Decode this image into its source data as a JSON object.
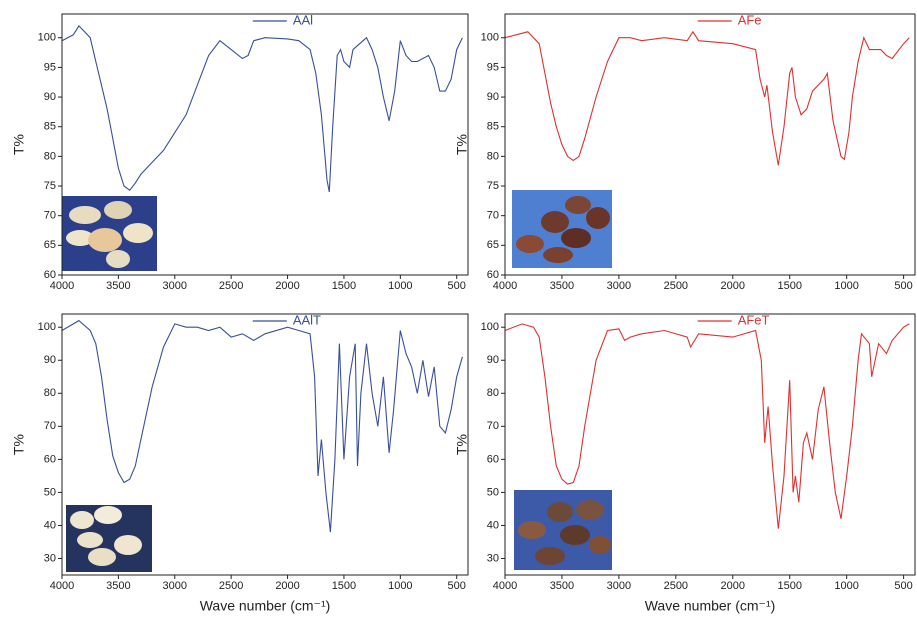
{
  "chart_data": [
    {
      "type": "line",
      "ylabel": "T%",
      "legend": "top",
      "x": [
        4000,
        3900,
        3850,
        3800,
        3750,
        3700,
        3650,
        3600,
        3550,
        3500,
        3450,
        3400,
        3350,
        3300,
        3200,
        3100,
        3000,
        2900,
        2800,
        2700,
        2600,
        2500,
        2400,
        2350,
        2300,
        2200,
        2000,
        1900,
        1800,
        1750,
        1700,
        1650,
        1630,
        1600,
        1560,
        1530,
        1500,
        1450,
        1420,
        1300,
        1250,
        1200,
        1150,
        1100,
        1050,
        1000,
        950,
        900,
        850,
        750,
        700,
        650,
        600,
        550,
        500,
        450
      ],
      "series": [
        {
          "name": "AAl",
          "color": "#3a4f9a",
          "values": [
            99.5,
            100.5,
            102,
            101,
            100,
            96,
            92,
            88,
            83,
            78,
            75,
            74.3,
            75.5,
            77,
            79,
            81,
            84,
            87,
            92,
            97,
            99.5,
            98,
            96.5,
            97,
            99.5,
            100,
            99.8,
            99.5,
            98,
            94,
            87,
            76,
            74,
            85,
            97,
            98,
            96,
            95,
            98,
            100,
            98,
            95,
            90,
            86,
            91,
            99.5,
            97,
            96,
            96,
            97,
            95,
            91,
            91,
            93,
            98,
            100
          ]
        }
      ],
      "xlim": [
        4000,
        400
      ],
      "ylim": [
        60,
        104
      ],
      "xticks": [
        4000,
        3500,
        3000,
        2500,
        2000,
        1500,
        1000,
        500
      ],
      "yticks": [
        60,
        65,
        70,
        75,
        80,
        85,
        90,
        95,
        100
      ]
    },
    {
      "type": "line",
      "ylabel": "T%",
      "legend": "top",
      "x": [
        4000,
        3800,
        3700,
        3650,
        3600,
        3550,
        3500,
        3450,
        3400,
        3350,
        3300,
        3200,
        3100,
        3000,
        2900,
        2800,
        2600,
        2400,
        2350,
        2300,
        2000,
        1800,
        1760,
        1720,
        1700,
        1650,
        1600,
        1550,
        1500,
        1480,
        1450,
        1400,
        1350,
        1300,
        1200,
        1170,
        1120,
        1050,
        1020,
        980,
        950,
        900,
        850,
        800,
        700,
        650,
        600,
        500,
        450
      ],
      "series": [
        {
          "name": "AFe",
          "color": "#e03030",
          "values": [
            100,
            101,
            99,
            94,
            89,
            85,
            82,
            80,
            79.3,
            80,
            83,
            90,
            96,
            100,
            100,
            99.5,
            100,
            99.5,
            101,
            99.5,
            99,
            98,
            93,
            90,
            92,
            84,
            78.5,
            85,
            94,
            95,
            90,
            87,
            88,
            91,
            93,
            94,
            86,
            80,
            79.5,
            84,
            90,
            96,
            100,
            98,
            98,
            97,
            96.5,
            99,
            100
          ]
        }
      ],
      "xlim": [
        4000,
        400
      ],
      "ylim": [
        60,
        104
      ],
      "xticks": [
        4000,
        3500,
        3000,
        2500,
        2000,
        1500,
        1000,
        500
      ],
      "yticks": [
        60,
        65,
        70,
        75,
        80,
        85,
        90,
        95,
        100
      ]
    },
    {
      "type": "line",
      "ylabel": "T%",
      "xlabel": "Wave number (cm⁻¹)",
      "legend": "top",
      "x": [
        4000,
        3850,
        3750,
        3700,
        3650,
        3600,
        3550,
        3500,
        3450,
        3400,
        3350,
        3300,
        3200,
        3100,
        3000,
        2900,
        2800,
        2700,
        2600,
        2500,
        2400,
        2300,
        2200,
        2000,
        1900,
        1800,
        1760,
        1730,
        1700,
        1660,
        1620,
        1580,
        1540,
        1500,
        1450,
        1400,
        1380,
        1350,
        1300,
        1250,
        1200,
        1150,
        1100,
        1060,
        1000,
        950,
        900,
        850,
        800,
        750,
        700,
        650,
        600,
        550,
        500,
        450
      ],
      "series": [
        {
          "name": "AAlT",
          "color": "#3a4f9a",
          "values": [
            99,
            102,
            99,
            95,
            85,
            72,
            61,
            56,
            53,
            54,
            58,
            66,
            82,
            94,
            101,
            100,
            100,
            99,
            100,
            97,
            98,
            96,
            98,
            100,
            99,
            98,
            85,
            55,
            66,
            50,
            38,
            60,
            95,
            60,
            85,
            95,
            58,
            80,
            95,
            80,
            70,
            85,
            62,
            75,
            99,
            92,
            88,
            80,
            90,
            79,
            88,
            70,
            68,
            75,
            85,
            91
          ]
        }
      ],
      "xlim": [
        4000,
        400
      ],
      "ylim": [
        25,
        104
      ],
      "xticks": [
        4000,
        3500,
        3000,
        2500,
        2000,
        1500,
        1000,
        500
      ],
      "yticks": [
        30,
        40,
        50,
        60,
        70,
        80,
        90,
        100
      ]
    },
    {
      "type": "line",
      "ylabel": "T%",
      "xlabel": "Wave number (cm⁻¹)",
      "legend": "top",
      "x": [
        4000,
        3850,
        3750,
        3700,
        3650,
        3600,
        3550,
        3500,
        3450,
        3400,
        3350,
        3300,
        3200,
        3100,
        3000,
        2950,
        2900,
        2800,
        2600,
        2400,
        2370,
        2300,
        2000,
        1800,
        1750,
        1720,
        1690,
        1650,
        1600,
        1550,
        1500,
        1470,
        1450,
        1420,
        1380,
        1350,
        1300,
        1250,
        1200,
        1150,
        1100,
        1050,
        1000,
        950,
        900,
        870,
        800,
        780,
        720,
        650,
        600,
        500,
        450
      ],
      "series": [
        {
          "name": "AFeT",
          "color": "#e03030",
          "values": [
            99,
            101,
            100,
            97,
            85,
            70,
            58,
            54,
            52.5,
            53,
            58,
            70,
            90,
            99,
            99.5,
            96,
            97,
            98,
            99,
            97,
            94,
            98,
            97,
            99,
            90,
            65,
            76,
            58,
            39,
            55,
            84,
            50,
            55,
            47,
            65,
            68,
            60,
            75,
            82,
            65,
            50,
            42,
            55,
            70,
            90,
            98,
            95,
            85,
            95,
            92,
            96,
            100,
            101
          ]
        }
      ],
      "xlim": [
        4000,
        400
      ],
      "ylim": [
        25,
        104
      ],
      "xticks": [
        4000,
        3500,
        3000,
        2500,
        2000,
        1500,
        1000,
        500
      ],
      "yticks": [
        30,
        40,
        50,
        60,
        70,
        80,
        90,
        100
      ]
    }
  ]
}
